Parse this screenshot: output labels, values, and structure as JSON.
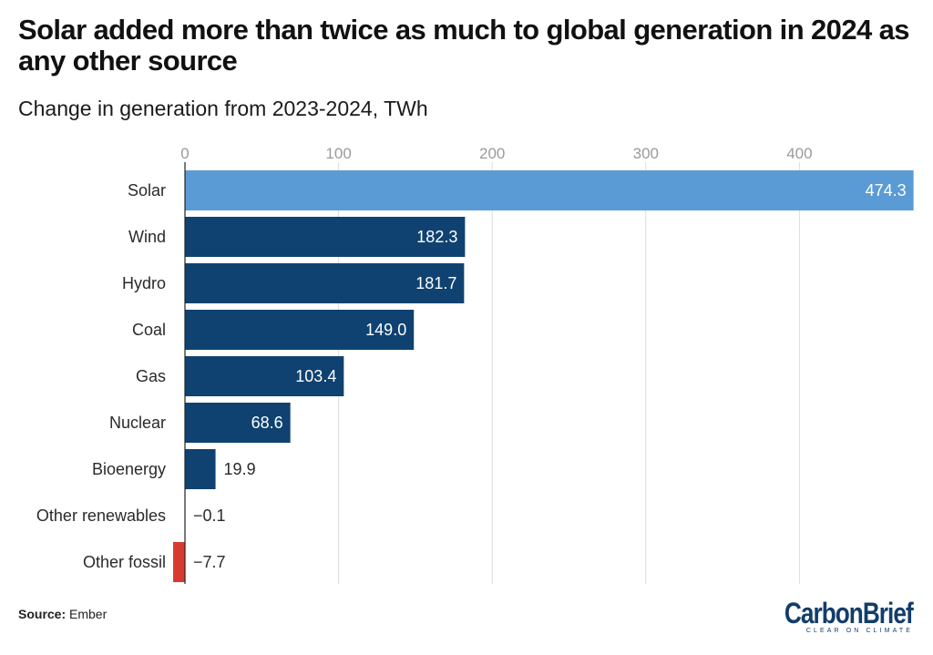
{
  "header": {
    "title": "Solar added more than twice as much to global generation in 2024 as any other source",
    "subtitle": "Change in generation from 2023-2024, TWh"
  },
  "footer": {
    "source_label": "Source:",
    "source_value": "Ember"
  },
  "logo": {
    "name": "CarbonBrief",
    "tagline": "CLEAR ON CLIMATE",
    "color": "#123d6b"
  },
  "chart_data": {
    "type": "bar",
    "orientation": "horizontal",
    "title": "Solar added more than twice as much to global generation in 2024 as any other source",
    "subtitle": "Change in generation from 2023-2024, TWh",
    "xlabel": "",
    "ylabel": "",
    "xlim": [
      -7.7,
      474.3
    ],
    "x_ticks": [
      0,
      100,
      200,
      300,
      400
    ],
    "grid": true,
    "categories": [
      "Solar",
      "Wind",
      "Hydro",
      "Coal",
      "Gas",
      "Nuclear",
      "Bioenergy",
      "Other renewables",
      "Other fossil"
    ],
    "values": [
      474.3,
      182.3,
      181.7,
      149.0,
      103.4,
      68.6,
      19.9,
      -0.1,
      -7.7
    ],
    "value_labels": [
      "474.3",
      "182.3",
      "181.7",
      "149.0",
      "103.4",
      "68.6",
      "19.9",
      "−0.1",
      "−7.7"
    ],
    "colors": [
      "#5b9bd5",
      "#0f4270",
      "#0f4270",
      "#0f4270",
      "#0f4270",
      "#0f4270",
      "#0f4270",
      "#0f4270",
      "#d93a30"
    ]
  }
}
